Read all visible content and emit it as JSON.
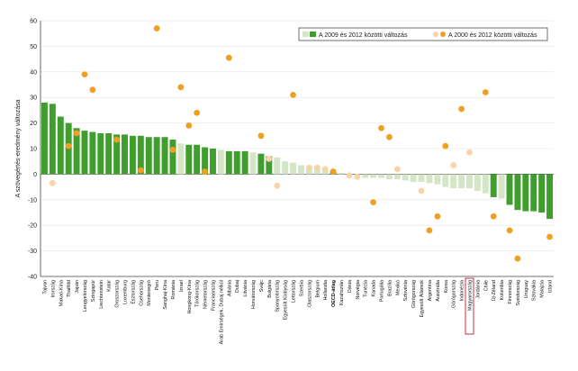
{
  "chart_data": {
    "type": "bar",
    "ylabel": "A szövegértés-eredmény változása",
    "ylim": [
      -40,
      60
    ],
    "yticks": [
      60,
      50,
      40,
      30,
      20,
      10,
      0,
      -10,
      -20,
      -30,
      -40
    ],
    "legend": {
      "position": "top-right",
      "bar_label": "A 2009 és 2012 közötti változás",
      "dot_label": "A 2000 és 2012 közötti változás"
    },
    "colors": {
      "bar_sig": "#3f9e2d",
      "bar_nonsig": "#d5e6c7",
      "dot_sig": "#f0a020",
      "dot_nonsig": "#f8d4a8",
      "highlight": "#c0202c"
    },
    "categories": [
      "Tajvan",
      "Irország",
      "Makaó-Kína",
      "Thaiföld",
      "Japán",
      "Lengyelország",
      "Szingapúr",
      "Liechtenstein",
      "Katar",
      "Oroszország",
      "Luxemburg",
      "Észtország",
      "Csehország",
      "Montenegró",
      "Peru",
      "Sanghaj-Kína",
      "Románia",
      "Izrael",
      "Hongkong-Kína",
      "Törökország",
      "Németország",
      "Franciaország",
      "Arab Emírségek, Dubaj nélkül",
      "Albánia",
      "Dubaj",
      "Litvánia",
      "Horvátország",
      "Svájc",
      "Bulgária",
      "Spanyolország",
      "Egyesült Királyság",
      "Lettország",
      "Szerbia",
      "Olaszország",
      "Belgium",
      "Hollandia",
      "OECD-átlag",
      "Kazahsztán",
      "Dánia",
      "Norvégia",
      "Tunézia",
      "Kanada",
      "Portugália",
      "Brazília",
      "Mexikó",
      "Szlovénia",
      "Görögország",
      "Egyesült Államok",
      "Argentína",
      "Ausztrália",
      "Korea",
      "Görögország",
      "Indonézia",
      "Magyarország",
      "Jordánia",
      "Chile",
      "Új-Zéland",
      "Kolumbia",
      "Finnország",
      "Svédország",
      "Uruguay",
      "Szlovákia",
      "Malajzia",
      "Izland"
    ],
    "series": [
      {
        "name": "A 2009 és 2012 közötti változás",
        "values": [
          28,
          27.5,
          22.5,
          20,
          18,
          17,
          16.5,
          16,
          16,
          15.5,
          15.5,
          15,
          15,
          14.5,
          14.5,
          14.5,
          13.5,
          12,
          11.5,
          11.5,
          10.5,
          10,
          9.5,
          9,
          9,
          9,
          8.5,
          8,
          7,
          6.5,
          5,
          4.5,
          3.5,
          2.5,
          2,
          1.5,
          1,
          0.5,
          0,
          -0.5,
          -1.5,
          -1.5,
          -1.5,
          -2,
          -2,
          -2.5,
          -3,
          -3,
          -3.5,
          -4,
          -5,
          -5.5,
          -5.5,
          -5.5,
          -6.5,
          -7.5,
          -9,
          -9.5,
          -12,
          -14,
          -14.5,
          -14.5,
          -15,
          -17.5
        ],
        "significant": [
          true,
          true,
          true,
          true,
          true,
          true,
          true,
          true,
          true,
          true,
          true,
          true,
          true,
          true,
          true,
          true,
          true,
          false,
          true,
          true,
          true,
          true,
          false,
          true,
          true,
          true,
          false,
          true,
          true,
          false,
          false,
          false,
          false,
          false,
          false,
          false,
          true,
          false,
          false,
          false,
          false,
          false,
          false,
          false,
          false,
          false,
          false,
          false,
          false,
          false,
          false,
          false,
          false,
          false,
          false,
          false,
          true,
          false,
          true,
          true,
          true,
          true,
          true,
          true
        ]
      },
      {
        "name": "A 2000 és 2012 közötti változás",
        "values": [
          null,
          -3.5,
          null,
          11,
          16,
          39,
          33,
          null,
          null,
          13.5,
          null,
          null,
          1.5,
          null,
          57,
          null,
          9.5,
          34,
          19,
          24,
          1,
          null,
          null,
          45.5,
          null,
          null,
          null,
          15,
          6,
          -4.5,
          null,
          31,
          null,
          2.5,
          2.5,
          2,
          1,
          null,
          -0.5,
          -1,
          null,
          -11,
          18,
          14.5,
          2,
          null,
          null,
          -6.5,
          -22,
          -16.5,
          11,
          3.5,
          25.5,
          8.5,
          null,
          32,
          -16.5,
          null,
          -22,
          -33,
          null,
          null,
          null,
          -24.5
        ],
        "significant": [
          false,
          false,
          false,
          true,
          true,
          true,
          true,
          false,
          false,
          true,
          false,
          false,
          true,
          false,
          true,
          false,
          true,
          true,
          true,
          true,
          true,
          false,
          false,
          true,
          false,
          false,
          false,
          true,
          false,
          false,
          false,
          true,
          false,
          false,
          false,
          false,
          true,
          false,
          false,
          false,
          false,
          true,
          true,
          true,
          false,
          false,
          false,
          false,
          true,
          true,
          true,
          false,
          true,
          false,
          false,
          true,
          true,
          false,
          true,
          true,
          false,
          false,
          false,
          true
        ]
      }
    ],
    "bold_categories": [
      "OECD-átlag"
    ],
    "highlight_category": "Magyarország"
  }
}
